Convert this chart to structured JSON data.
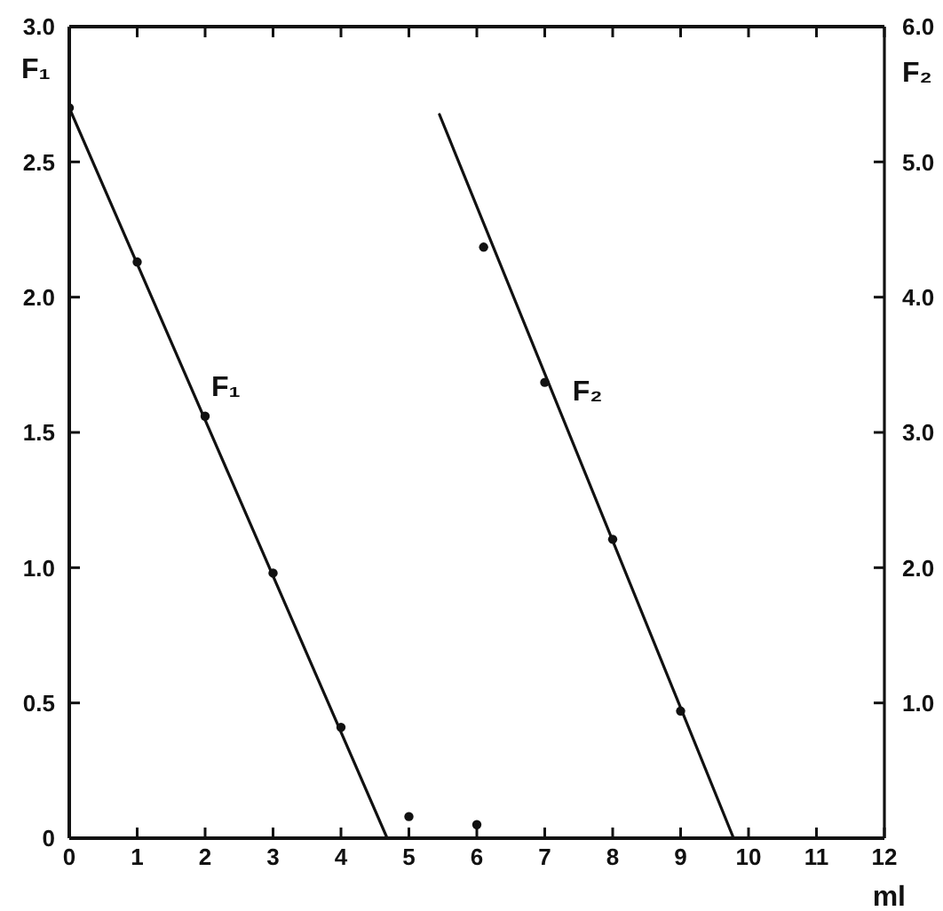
{
  "chart_data": {
    "type": "scatter",
    "xlabel": "ml",
    "ylabel": "F₁",
    "y2label": "F₂",
    "xlim": [
      0,
      12
    ],
    "xticks": [
      0,
      1,
      2,
      3,
      4,
      5,
      6,
      7,
      8,
      9,
      10,
      11,
      12
    ],
    "ylim": [
      0,
      3
    ],
    "yticks": [
      0,
      0.5,
      {
        "value": 1,
        "label": "1.0"
      },
      1.5,
      {
        "value": 2,
        "label": "2.0"
      },
      2.5,
      {
        "value": 3,
        "label": "3.0"
      }
    ],
    "y2lim": [
      0,
      6
    ],
    "y2ticks": [
      {
        "value": 1,
        "label": "1.0"
      },
      {
        "value": 2,
        "label": "2.0"
      },
      {
        "value": 3,
        "label": "3.0"
      },
      {
        "value": 4,
        "label": "4.0"
      },
      {
        "value": 5,
        "label": "5.0"
      },
      {
        "value": 6,
        "label": "6.0"
      }
    ],
    "marker": "circle",
    "line_style": "solid",
    "series": [
      {
        "color": "#111111",
        "x": [
          0,
          1,
          2,
          3,
          4,
          5,
          6
        ],
        "values": [
          2.7,
          2.13,
          1.56,
          0.98,
          0.41,
          0.08,
          0.05
        ]
      },
      {
        "name": "F₁",
        "type": "line",
        "marker": "none",
        "color": "#111111",
        "x": [
          0,
          4.68
        ],
        "values": [
          2.7,
          0
        ]
      },
      {
        "axis": "y2",
        "color": "#111111",
        "x": [
          6.1,
          7,
          8,
          9
        ],
        "values": [
          4.37,
          3.37,
          2.21,
          0.94
        ]
      },
      {
        "name": "F₂",
        "type": "line",
        "marker": "none",
        "axis": "y2",
        "color": "#111111",
        "x": [
          5.45,
          9.78
        ],
        "values": [
          5.35,
          0
        ]
      }
    ]
  }
}
